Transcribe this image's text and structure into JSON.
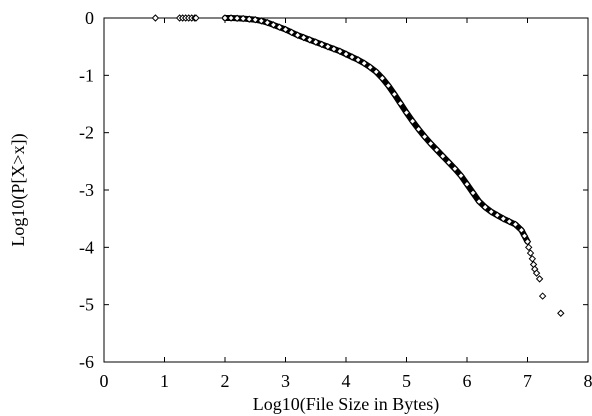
{
  "chart_data": {
    "type": "scatter",
    "title": "",
    "xlabel": "Log10(File Size in Bytes)",
    "ylabel": "Log10(P[X>x])",
    "xlim": [
      0,
      8
    ],
    "ylim": [
      -6,
      0
    ],
    "x_ticks": [
      "0",
      "1",
      "2",
      "3",
      "4",
      "5",
      "6",
      "7",
      "8"
    ],
    "y_ticks": [
      "0",
      "-1",
      "-2",
      "-3",
      "-4",
      "-5",
      "-6"
    ],
    "grid": false,
    "legend": "none",
    "marker": "diamond-open",
    "marker_color": "#000000",
    "series": [
      {
        "x": [
          0.85,
          1.25,
          1.3,
          1.35,
          1.4,
          1.45,
          1.5,
          1.52,
          2.0,
          2.1,
          2.2,
          2.3,
          2.4,
          2.5,
          2.6,
          2.7,
          2.8,
          2.9,
          3.0,
          3.1,
          3.2,
          3.3,
          3.4,
          3.5,
          3.6,
          3.7,
          3.8,
          3.9,
          4.0,
          4.1,
          4.2,
          4.3,
          4.4,
          4.5,
          4.6,
          4.7,
          4.8,
          4.9,
          5.0,
          5.1,
          5.2,
          5.3,
          5.4,
          5.5,
          5.6,
          5.7,
          5.8,
          5.9,
          6.0,
          6.1,
          6.2,
          6.3,
          6.4,
          6.5,
          6.6,
          6.7,
          6.8,
          6.9,
          6.95,
          7.0,
          7.02,
          7.05,
          7.08,
          7.1,
          7.12,
          7.15,
          7.2,
          7.25,
          7.55
        ],
        "y": [
          0,
          0,
          0,
          0,
          0,
          0,
          0,
          0,
          0,
          0,
          -0.005,
          -0.01,
          -0.02,
          -0.03,
          -0.05,
          -0.08,
          -0.12,
          -0.16,
          -0.2,
          -0.25,
          -0.3,
          -0.34,
          -0.38,
          -0.42,
          -0.46,
          -0.5,
          -0.54,
          -0.58,
          -0.63,
          -0.68,
          -0.73,
          -0.79,
          -0.86,
          -0.94,
          -1.05,
          -1.18,
          -1.33,
          -1.49,
          -1.65,
          -1.8,
          -1.94,
          -2.07,
          -2.19,
          -2.3,
          -2.41,
          -2.52,
          -2.63,
          -2.75,
          -2.9,
          -3.05,
          -3.2,
          -3.3,
          -3.38,
          -3.44,
          -3.5,
          -3.55,
          -3.6,
          -3.7,
          -3.8,
          -3.9,
          -4.0,
          -4.1,
          -4.2,
          -4.3,
          -4.38,
          -4.45,
          -4.55,
          -4.85,
          -5.15
        ]
      }
    ]
  }
}
